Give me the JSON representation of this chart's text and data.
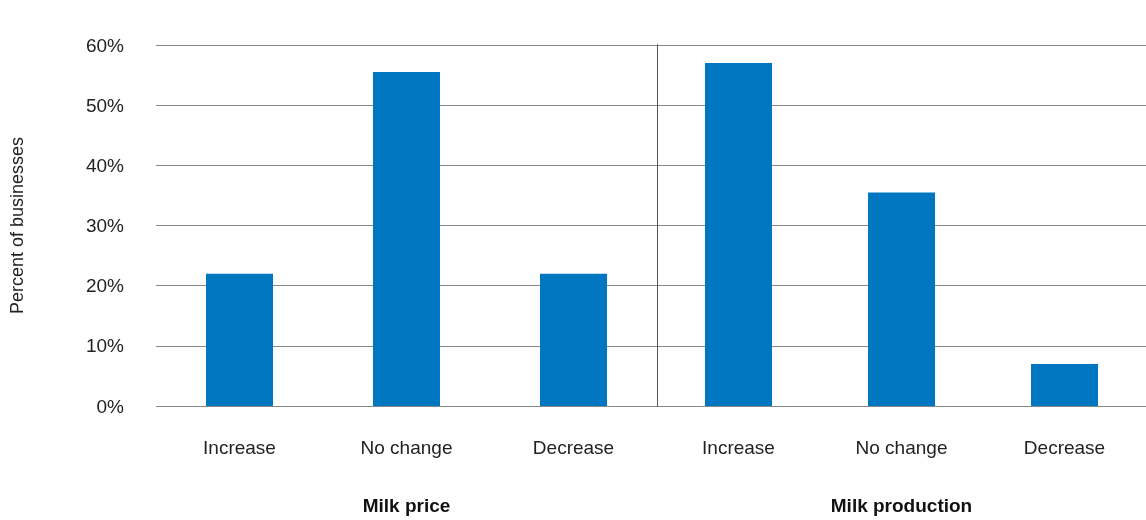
{
  "chart_data": [
    {
      "type": "bar",
      "xlabel": "Milk price",
      "ylabel": "Percent of businesses",
      "categories": [
        "Increase",
        "No change",
        "Decrease"
      ],
      "values": [
        22,
        55.5,
        22
      ],
      "color": "#0077c0",
      "ylim": [
        0,
        60
      ],
      "yticks": [
        {
          "value": 0,
          "label": "0%"
        },
        {
          "value": 10,
          "label": "10%"
        },
        {
          "value": 20,
          "label": "20%"
        },
        {
          "value": 30,
          "label": "30%"
        },
        {
          "value": 40,
          "label": "40%"
        },
        {
          "value": 50,
          "label": "50%"
        },
        {
          "value": 60,
          "label": "60%"
        }
      ],
      "grid": "y"
    },
    {
      "type": "bar",
      "xlabel": "Milk production",
      "categories": [
        "Increase",
        "No change",
        "Decrease"
      ],
      "values": [
        57,
        35.5,
        7
      ],
      "color": "#0077c0",
      "ylim": [
        0,
        60
      ],
      "yticks": [
        0,
        10,
        20,
        30,
        40,
        50,
        60
      ],
      "grid": "y",
      "tick_labels": "x"
    }
  ]
}
